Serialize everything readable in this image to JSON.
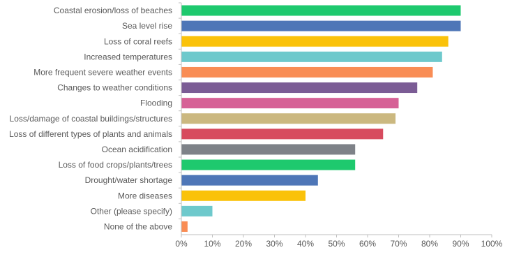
{
  "chart_data": {
    "type": "bar",
    "orientation": "horizontal",
    "title": "",
    "xlabel": "",
    "ylabel": "",
    "xlim": [
      0,
      100
    ],
    "x_ticks": [
      "0%",
      "10%",
      "20%",
      "30%",
      "40%",
      "50%",
      "60%",
      "70%",
      "80%",
      "90%",
      "100%"
    ],
    "grid": false,
    "legend": "none",
    "categories": [
      "Coastal erosion/loss of beaches",
      "Sea level rise",
      "Loss of coral reefs",
      "Increased temperatures",
      "More frequent severe weather events",
      "Changes to weather conditions",
      "Flooding",
      "Loss/damage of coastal buildings/structures",
      "Loss of different types of plants and animals",
      "Ocean acidification",
      "Loss of food crops/plants/trees",
      "Drought/water shortage",
      "More diseases",
      "Other (please specify)",
      "None of the above"
    ],
    "values": [
      90,
      90,
      86,
      84,
      81,
      76,
      70,
      69,
      65,
      56,
      56,
      44,
      40,
      10,
      2
    ],
    "colors": [
      "#1ec96e",
      "#4e76b7",
      "#fac20a",
      "#6ec9cc",
      "#f98d55",
      "#7b5c95",
      "#d66196",
      "#cbb880",
      "#d74b5e",
      "#7e8288",
      "#1ec96e",
      "#4e76b7",
      "#fac20a",
      "#6ec9cc",
      "#f98d55"
    ]
  }
}
